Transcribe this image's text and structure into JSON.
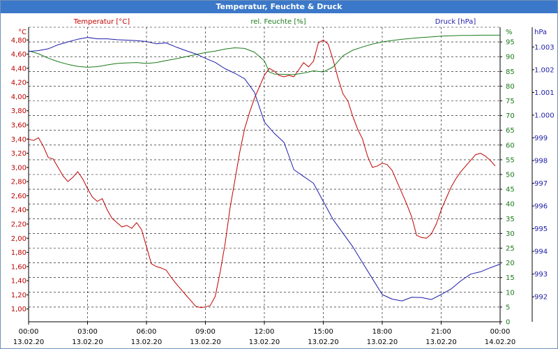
{
  "window": {
    "title": "Temperatur, Feuchte & Druck"
  },
  "chart_data": {
    "type": "line",
    "series": [
      {
        "name": "Temperatur [°C]",
        "axis": "left",
        "color": "#c00000",
        "unit": "°C",
        "points": [
          [
            0,
            3.4
          ],
          [
            0.25,
            3.38
          ],
          [
            0.5,
            3.42
          ],
          [
            0.75,
            3.3
          ],
          [
            1.0,
            3.14
          ],
          [
            1.25,
            3.12
          ],
          [
            1.5,
            3.0
          ],
          [
            1.75,
            2.88
          ],
          [
            2.0,
            2.8
          ],
          [
            2.25,
            2.86
          ],
          [
            2.5,
            2.94
          ],
          [
            2.75,
            2.84
          ],
          [
            3.0,
            2.7
          ],
          [
            3.25,
            2.58
          ],
          [
            3.5,
            2.52
          ],
          [
            3.75,
            2.56
          ],
          [
            4.0,
            2.4
          ],
          [
            4.25,
            2.28
          ],
          [
            4.5,
            2.22
          ],
          [
            4.75,
            2.16
          ],
          [
            5.0,
            2.18
          ],
          [
            5.25,
            2.14
          ],
          [
            5.5,
            2.22
          ],
          [
            5.75,
            2.12
          ],
          [
            6.0,
            1.88
          ],
          [
            6.25,
            1.64
          ],
          [
            6.5,
            1.6
          ],
          [
            6.75,
            1.58
          ],
          [
            7.0,
            1.55
          ],
          [
            7.25,
            1.45
          ],
          [
            7.5,
            1.36
          ],
          [
            7.75,
            1.28
          ],
          [
            8.0,
            1.2
          ],
          [
            8.25,
            1.12
          ],
          [
            8.5,
            1.04
          ],
          [
            8.75,
            1.02
          ],
          [
            9.0,
            1.03
          ],
          [
            9.25,
            1.05
          ],
          [
            9.5,
            1.18
          ],
          [
            9.75,
            1.52
          ],
          [
            10.0,
            1.92
          ],
          [
            10.25,
            2.42
          ],
          [
            10.5,
            2.82
          ],
          [
            10.75,
            3.22
          ],
          [
            11.0,
            3.55
          ],
          [
            11.25,
            3.78
          ],
          [
            11.5,
            3.98
          ],
          [
            11.75,
            4.14
          ],
          [
            12.0,
            4.3
          ],
          [
            12.25,
            4.4
          ],
          [
            12.5,
            4.36
          ],
          [
            12.75,
            4.3
          ],
          [
            13.0,
            4.28
          ],
          [
            13.25,
            4.3
          ],
          [
            13.5,
            4.28
          ],
          [
            13.75,
            4.38
          ],
          [
            14.0,
            4.48
          ],
          [
            14.25,
            4.42
          ],
          [
            14.5,
            4.5
          ],
          [
            14.75,
            4.76
          ],
          [
            15.0,
            4.8
          ],
          [
            15.25,
            4.74
          ],
          [
            15.5,
            4.52
          ],
          [
            15.75,
            4.26
          ],
          [
            16.0,
            4.04
          ],
          [
            16.25,
            3.94
          ],
          [
            16.5,
            3.72
          ],
          [
            16.75,
            3.54
          ],
          [
            17.0,
            3.4
          ],
          [
            17.25,
            3.16
          ],
          [
            17.5,
            3.0
          ],
          [
            17.75,
            3.02
          ],
          [
            18.0,
            3.06
          ],
          [
            18.25,
            3.04
          ],
          [
            18.5,
            2.96
          ],
          [
            18.75,
            2.8
          ],
          [
            19.0,
            2.64
          ],
          [
            19.25,
            2.48
          ],
          [
            19.5,
            2.3
          ],
          [
            19.75,
            2.04
          ],
          [
            20.0,
            2.01
          ],
          [
            20.25,
            2.0
          ],
          [
            20.5,
            2.06
          ],
          [
            20.75,
            2.2
          ],
          [
            21.0,
            2.4
          ],
          [
            21.25,
            2.56
          ],
          [
            21.5,
            2.72
          ],
          [
            21.75,
            2.84
          ],
          [
            22.0,
            2.94
          ],
          [
            22.25,
            3.02
          ],
          [
            22.5,
            3.1
          ],
          [
            22.75,
            3.18
          ],
          [
            23.0,
            3.2
          ],
          [
            23.25,
            3.16
          ],
          [
            23.5,
            3.1
          ],
          [
            23.75,
            3.02
          ]
        ]
      },
      {
        "name": "rel. Feuchte [%]",
        "axis": "right-inner",
        "color": "#1a7a1a",
        "unit": "%",
        "points": [
          [
            0,
            92.0
          ],
          [
            0.5,
            91.0
          ],
          [
            1.0,
            89.5
          ],
          [
            1.5,
            88.3
          ],
          [
            2.0,
            87.4
          ],
          [
            2.5,
            86.7
          ],
          [
            3.0,
            86.4
          ],
          [
            3.5,
            86.6
          ],
          [
            4.0,
            87.2
          ],
          [
            4.5,
            87.7
          ],
          [
            5.0,
            87.9
          ],
          [
            5.5,
            88.0
          ],
          [
            6.0,
            87.7
          ],
          [
            6.5,
            88.0
          ],
          [
            7.0,
            88.7
          ],
          [
            7.5,
            89.3
          ],
          [
            8.0,
            90.0
          ],
          [
            8.5,
            90.7
          ],
          [
            9.0,
            91.4
          ],
          [
            9.5,
            91.9
          ],
          [
            10.0,
            92.6
          ],
          [
            10.5,
            93.0
          ],
          [
            11.0,
            92.8
          ],
          [
            11.5,
            91.5
          ],
          [
            12.0,
            88.6
          ],
          [
            12.25,
            84.8
          ],
          [
            12.5,
            84.1
          ],
          [
            13.0,
            84.0
          ],
          [
            13.5,
            83.9
          ],
          [
            14.0,
            84.4
          ],
          [
            14.5,
            85.2
          ],
          [
            15.0,
            84.8
          ],
          [
            15.5,
            86.5
          ],
          [
            16.0,
            90.3
          ],
          [
            16.5,
            92.2
          ],
          [
            17.0,
            93.3
          ],
          [
            17.5,
            94.3
          ],
          [
            18.0,
            95.0
          ],
          [
            18.5,
            95.5
          ],
          [
            19.0,
            95.9
          ],
          [
            19.5,
            96.2
          ],
          [
            20.0,
            96.5
          ],
          [
            20.5,
            96.7
          ],
          [
            21.0,
            97.0
          ],
          [
            21.5,
            97.1
          ],
          [
            22.0,
            97.2
          ],
          [
            22.5,
            97.2
          ],
          [
            23.0,
            97.3
          ],
          [
            23.5,
            97.3
          ],
          [
            24.0,
            97.3
          ]
        ]
      },
      {
        "name": "Druck [hPa]",
        "axis": "right-outer",
        "color": "#1c1ca8",
        "unit": "hPa",
        "points": [
          [
            0,
            1002.8
          ],
          [
            0.5,
            1002.84
          ],
          [
            1.0,
            1002.92
          ],
          [
            1.5,
            1003.1
          ],
          [
            2.0,
            1003.22
          ],
          [
            2.5,
            1003.34
          ],
          [
            3.0,
            1003.42
          ],
          [
            3.5,
            1003.36
          ],
          [
            4.0,
            1003.36
          ],
          [
            4.5,
            1003.32
          ],
          [
            5.0,
            1003.3
          ],
          [
            5.5,
            1003.28
          ],
          [
            6.0,
            1003.24
          ],
          [
            6.5,
            1003.14
          ],
          [
            7.0,
            1003.18
          ],
          [
            7.5,
            1003.0
          ],
          [
            8.0,
            1002.84
          ],
          [
            8.5,
            1002.7
          ],
          [
            9.0,
            1002.5
          ],
          [
            9.5,
            1002.32
          ],
          [
            10.0,
            1002.04
          ],
          [
            10.5,
            1001.84
          ],
          [
            11.0,
            1001.6
          ],
          [
            11.5,
            1001.0
          ],
          [
            12.0,
            999.7
          ],
          [
            12.5,
            999.2
          ],
          [
            13.0,
            998.8
          ],
          [
            13.5,
            997.6
          ],
          [
            14.0,
            997.3
          ],
          [
            14.5,
            997.0
          ],
          [
            15.0,
            996.2
          ],
          [
            15.5,
            995.4
          ],
          [
            16.0,
            994.8
          ],
          [
            16.5,
            994.2
          ],
          [
            17.0,
            993.5
          ],
          [
            17.5,
            992.8
          ],
          [
            18.0,
            992.1
          ],
          [
            18.5,
            991.9
          ],
          [
            19.0,
            991.82
          ],
          [
            19.5,
            991.98
          ],
          [
            20.0,
            991.97
          ],
          [
            20.5,
            991.88
          ],
          [
            21.0,
            992.1
          ],
          [
            21.5,
            992.34
          ],
          [
            22.0,
            992.7
          ],
          [
            22.5,
            993.0
          ],
          [
            23.0,
            993.1
          ],
          [
            23.5,
            993.28
          ],
          [
            24.0,
            993.44
          ]
        ]
      }
    ],
    "left_axis": {
      "unit_label": "°C",
      "series_label": "Temperatur [°C]",
      "ticks": [
        "1,00",
        "1,20",
        "1,40",
        "1,60",
        "1,80",
        "2,00",
        "2,20",
        "2,40",
        "2,60",
        "2,80",
        "3,00",
        "3,20",
        "3,40",
        "3,60",
        "3,80",
        "4,00",
        "4,20",
        "4,40",
        "4,60",
        "4,80"
      ],
      "ylim": [
        0.82,
        4.98
      ]
    },
    "right_axis_humidity": {
      "unit_label": "%",
      "series_label": "rel. Feuchte [%]",
      "ticks": [
        "0",
        "5",
        "10",
        "15",
        "20",
        "25",
        "30",
        "35",
        "40",
        "45",
        "50",
        "55",
        "60",
        "65",
        "70",
        "75",
        "80",
        "85",
        "90",
        "95"
      ],
      "top_tick": "%",
      "ylim": [
        0,
        100
      ]
    },
    "right_axis_pressure": {
      "unit_label": "hPa",
      "series_label": "Druck [hPa]",
      "ticks": [
        {
          "label": "992",
          "value": 992
        },
        {
          "label": "993",
          "value": 993
        },
        {
          "label": "994",
          "value": 994
        },
        {
          "label": "995",
          "value": 995
        },
        {
          "label": "996",
          "value": 996
        },
        {
          "label": "997",
          "value": 997
        },
        {
          "label": "998",
          "value": 998
        },
        {
          "label": "999",
          "value": 999
        },
        {
          "label": "1.000",
          "value": 1000
        },
        {
          "label": "1.001",
          "value": 1001
        },
        {
          "label": "1.002",
          "value": 1002
        },
        {
          "label": "1.003",
          "value": 1003
        }
      ],
      "ylim": [
        990.9,
        1003.87
      ]
    },
    "x_axis": {
      "ticks": [
        {
          "time": "00:00",
          "date": "13.02.20"
        },
        {
          "time": "03:00",
          "date": "13.02.20"
        },
        {
          "time": "06:00",
          "date": "13.02.20"
        },
        {
          "time": "09:00",
          "date": "13.02.20"
        },
        {
          "time": "12:00",
          "date": "13.02.20"
        },
        {
          "time": "15:00",
          "date": "13.02.20"
        },
        {
          "time": "18:00",
          "date": "13.02.20"
        },
        {
          "time": "21:00",
          "date": "13.02.20"
        },
        {
          "time": "00:00",
          "date": "14.02.20"
        }
      ],
      "xlim": [
        0,
        24
      ],
      "tick_step_hours": 3
    },
    "grid": true,
    "grid_color": "#000000",
    "background": "#ffffff"
  }
}
